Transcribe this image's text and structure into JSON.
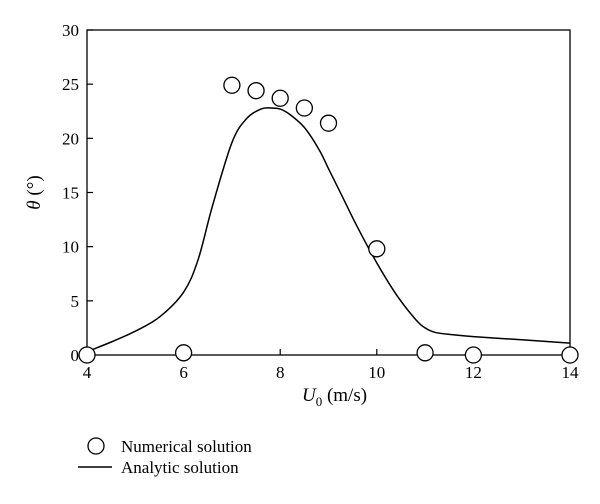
{
  "chart_data": {
    "type": "line",
    "xlabel": {
      "main": "U",
      "sub": "0",
      "unit": " (m/s)"
    },
    "ylabel": {
      "main": "θ",
      "unit": " (°)"
    },
    "xlim": [
      4,
      14
    ],
    "ylim": [
      0,
      30
    ],
    "xticks": [
      "4",
      "6",
      "8",
      "10",
      "12",
      "14"
    ],
    "yticks": [
      "0",
      "5",
      "10",
      "15",
      "20",
      "25",
      "30"
    ],
    "grid": false,
    "legend_position": "bottom-left",
    "series": [
      {
        "name": "Numerical solution",
        "kind": "scatter",
        "marker": "open-circle",
        "x": [
          4.0,
          6.0,
          7.0,
          7.5,
          8.0,
          8.5,
          9.0,
          10.0,
          11.0,
          12.0,
          14.0
        ],
        "y": [
          0.0,
          0.2,
          24.9,
          24.4,
          23.7,
          22.8,
          21.4,
          9.8,
          0.2,
          0.0,
          0.0
        ]
      },
      {
        "name": "Analytic solution",
        "kind": "line",
        "x": [
          4.0,
          4.5,
          5.0,
          5.5,
          6.0,
          6.3,
          6.6,
          7.0,
          7.3,
          7.6,
          7.8,
          8.0,
          8.2,
          8.5,
          8.8,
          9.0,
          9.3,
          9.6,
          10.0,
          10.4,
          10.8,
          11.0,
          11.2,
          11.5,
          12.0,
          13.0,
          14.0
        ],
        "y": [
          0.3,
          1.2,
          2.2,
          3.5,
          5.8,
          8.8,
          13.8,
          19.6,
          21.8,
          22.7,
          22.8,
          22.7,
          22.2,
          21.0,
          19.0,
          17.2,
          14.5,
          11.8,
          8.5,
          5.6,
          3.3,
          2.5,
          2.1,
          1.9,
          1.7,
          1.4,
          1.1
        ]
      }
    ]
  }
}
